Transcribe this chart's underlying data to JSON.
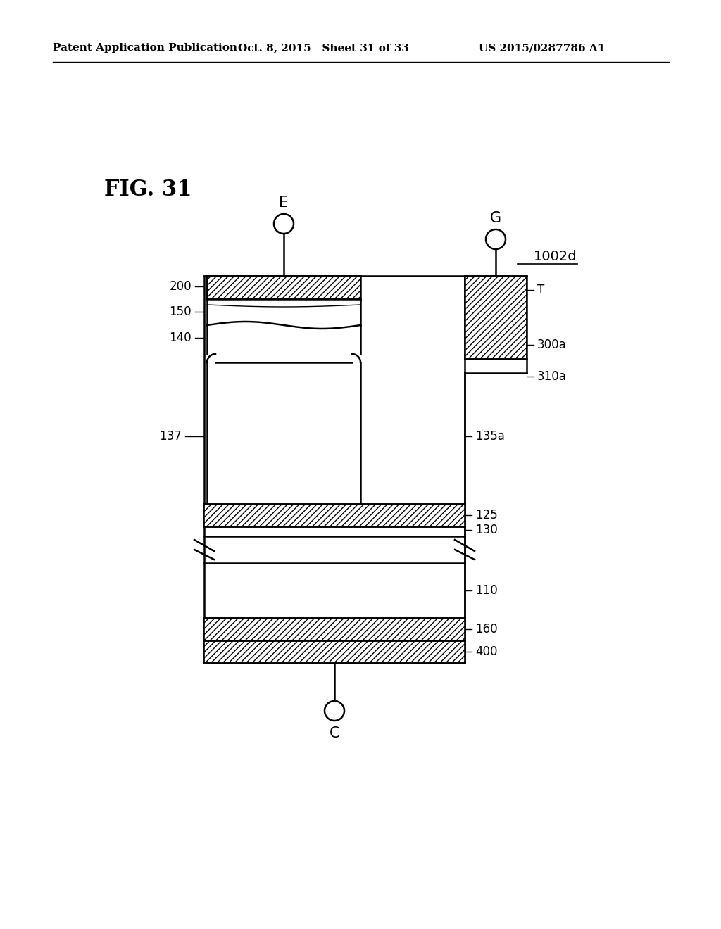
{
  "bg_color": "#ffffff",
  "header_left": "Patent Application Publication",
  "header_mid": "Oct. 8, 2015   Sheet 31 of 33",
  "header_right": "US 2015/0287786 A1",
  "fig_label": "FIG. 31",
  "device_label": "1002d",
  "terminal_E": "E",
  "terminal_G": "G",
  "terminal_C": "C"
}
